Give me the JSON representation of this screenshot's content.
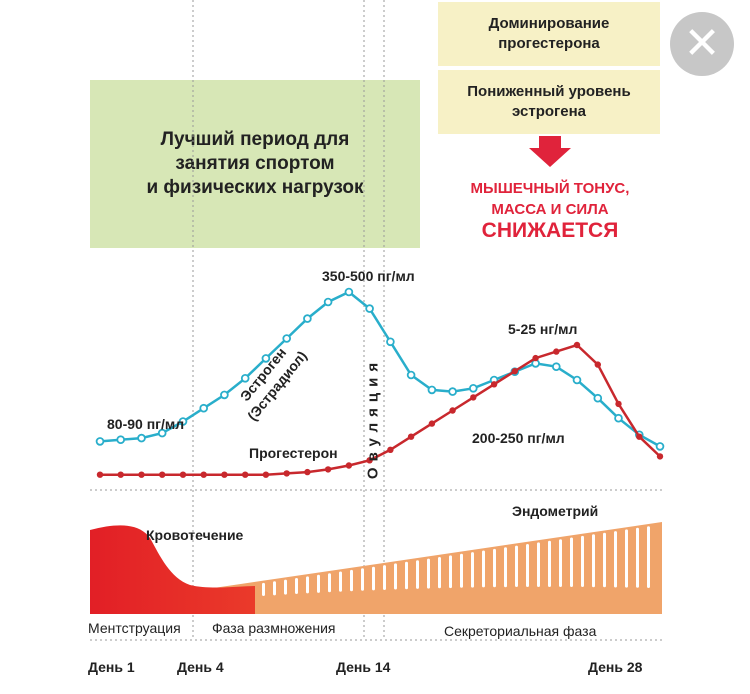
{
  "green_box": {
    "line1": "Лучший период для",
    "line2": "занятия спортом",
    "line3": "и физических нагрузок"
  },
  "info_boxes": {
    "progesterone_line1": "Доминирование",
    "progesterone_line2": "прогестерона",
    "estrogen_line1": "Пониженный уровень",
    "estrogen_line2": "эстрогена"
  },
  "warning": {
    "line1": "МЫШЕЧНЫЙ ТОНУС,",
    "line2": "МАССА И СИЛА",
    "line3": "СНИЖАЕТСЯ"
  },
  "close_button": {
    "glyph": "✕"
  },
  "chart_data": {
    "type": "line",
    "title": "",
    "x": [
      1,
      28
    ],
    "xlabel": "",
    "ylabel": "",
    "series": [
      {
        "name": "Эстроген (Эстрадиол)",
        "color": "#29aecb",
        "relative_level": [
          0.1,
          0.11,
          0.12,
          0.15,
          0.22,
          0.3,
          0.38,
          0.48,
          0.6,
          0.72,
          0.84,
          0.94,
          1.0,
          0.9,
          0.7,
          0.5,
          0.41,
          0.4,
          0.42,
          0.47,
          0.52,
          0.57,
          0.55,
          0.47,
          0.36,
          0.24,
          0.14,
          0.07
        ]
      },
      {
        "name": "Прогестерон",
        "color": "#c8282d",
        "relative_level": [
          0.01,
          0.01,
          0.01,
          0.01,
          0.01,
          0.01,
          0.01,
          0.01,
          0.01,
          0.02,
          0.03,
          0.05,
          0.08,
          0.12,
          0.2,
          0.3,
          0.4,
          0.5,
          0.6,
          0.7,
          0.8,
          0.9,
          0.95,
          1.0,
          0.85,
          0.55,
          0.3,
          0.15
        ]
      }
    ],
    "annotations": {
      "estrogen_low": "80-90 пг/мл",
      "estrogen_peak": "350-500 пг/мл",
      "progesterone_peak": "5-25 нг/мл",
      "estrogen_second": "200-250 пг/мл",
      "estrogen_name_line1": "Эстроген",
      "estrogen_name_line2": "(Эстрадиол)",
      "progesterone_name": "Прогестерон",
      "ovulation": "Овуляция",
      "bleeding": "Кровотечение",
      "endometrium": "Эндометрий"
    },
    "phases": [
      "Ментструация",
      "Фаза размножения",
      "Секреториальная фаза"
    ],
    "days": [
      "День 1",
      "День 4",
      "День 14",
      "День 28"
    ]
  }
}
